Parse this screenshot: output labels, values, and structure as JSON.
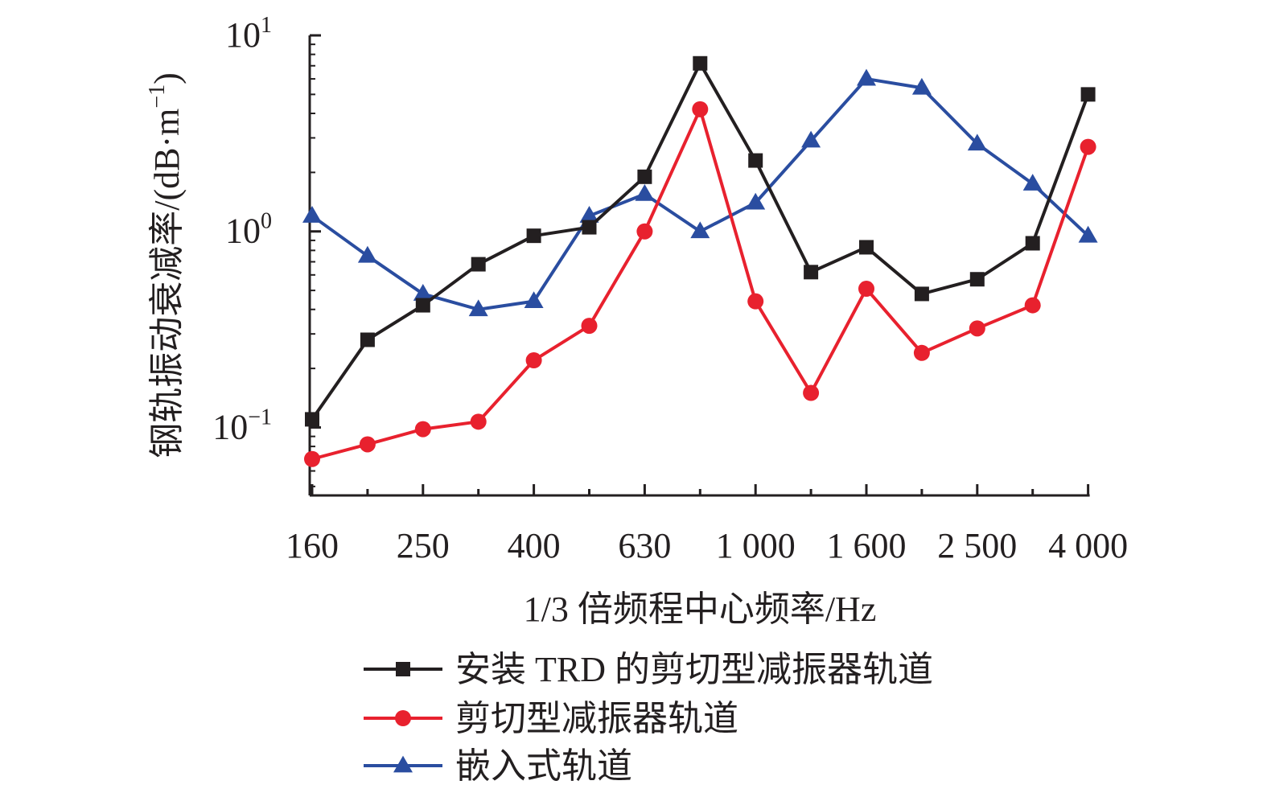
{
  "chart_data": {
    "type": "line",
    "title": "",
    "xlabel": "1/3 倍频程中心频率/Hz",
    "ylabel": "钢轨振动衰减率/(dB·m",
    "ylabel_sup": "−1",
    "ylabel_close": ")",
    "yscale": "log",
    "ylim": [
      0.045,
      10
    ],
    "yticks": [
      {
        "base": "10",
        "exp": "1",
        "value": 10
      },
      {
        "base": "10",
        "exp": "0",
        "value": 1
      },
      {
        "base": "10",
        "exp": "−1",
        "value": 0.1
      }
    ],
    "categories": [
      "160",
      "200",
      "250",
      "315",
      "400",
      "500",
      "630",
      "800",
      "1000",
      "1250",
      "1600",
      "2000",
      "2500",
      "3150",
      "4000"
    ],
    "x_tick_labels": [
      "160",
      "250",
      "400",
      "630",
      "1 000",
      "1 600",
      "2 500",
      "4 000"
    ],
    "x_tick_label_indices": [
      0,
      2,
      4,
      6,
      8,
      10,
      12,
      14
    ],
    "legend_position": "bottom",
    "series": [
      {
        "name": "安装 TRD 的剪切型减振器轨道",
        "color": "#231f20",
        "marker": "square",
        "values": [
          0.11,
          0.28,
          0.42,
          0.68,
          0.95,
          1.05,
          1.9,
          7.2,
          2.3,
          0.62,
          0.83,
          0.48,
          0.57,
          0.87,
          5.0
        ]
      },
      {
        "name": "剪切型减振器轨道",
        "color": "#e8212e",
        "marker": "circle",
        "values": [
          0.069,
          0.082,
          0.098,
          0.107,
          0.22,
          0.33,
          1.0,
          4.2,
          0.44,
          0.15,
          0.51,
          0.24,
          0.32,
          0.42,
          2.7
        ]
      },
      {
        "name": "嵌入式轨道",
        "color": "#2a4da0",
        "marker": "triangle",
        "values": [
          1.2,
          0.75,
          0.48,
          0.4,
          0.44,
          1.2,
          1.55,
          1.0,
          1.4,
          2.9,
          6.0,
          5.4,
          2.8,
          1.75,
          0.95
        ]
      }
    ]
  }
}
